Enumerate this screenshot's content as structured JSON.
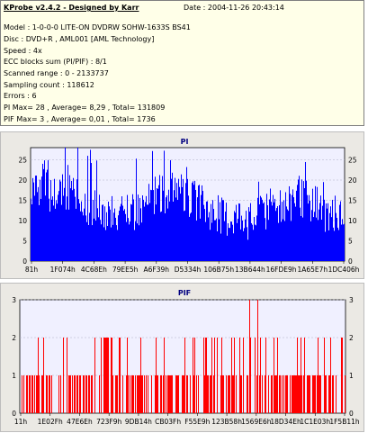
{
  "info": {
    "title": "KProbe v2.4.2 - Designed by Karr",
    "date": "Date : 2004-11-26 20:43:14",
    "lines": [
      "Model : 1-0-0-0 LITE-ON DVDRW SOHW-1633S BS41",
      "Disc : DVD+R , AML001 [AML Technology]",
      "Speed : 4x",
      "ECC blocks sum (PI/PIF) : 8/1",
      "Scanned range : 0 - 2133737",
      "Sampling count : 118612",
      "Errors : 6",
      "PI Max= 28 , Average= 8,29 , Total= 131809",
      "PIF Max= 3 , Average= 0,01 , Total= 1736"
    ]
  },
  "charts": {
    "pi": {
      "title": "PI",
      "color": "#0000ff",
      "yticks": [
        0,
        5,
        10,
        15,
        20,
        25
      ],
      "ymax": 28,
      "xticks": [
        "81h",
        "1F074h",
        "4C68Eh",
        "79EE5h",
        "A6F39h",
        "D5334h",
        "106B75h",
        "13B644h",
        "16FDE9h",
        "1A65E7h",
        "1DC406h"
      ]
    },
    "pif": {
      "title": "PIF",
      "color": "#ff0000",
      "yticks": [
        0,
        1,
        2,
        3
      ],
      "ymax": 3,
      "xticks": [
        "11h",
        "1E02Fh",
        "47E6Eh",
        "723F9h",
        "9DB14h",
        "CB03Fh",
        "F55E9h",
        "123B58h",
        "1569E6h",
        "18D34Eh",
        "1C1E03h",
        "1F5B11h"
      ]
    }
  },
  "chart_data": [
    {
      "type": "bar",
      "title": "PI",
      "ylim": [
        0,
        28
      ],
      "yticks": [
        0,
        5,
        10,
        15,
        20,
        25
      ],
      "categories": [
        "81h",
        "1F074h",
        "4C68Eh",
        "79EE5h",
        "A6F39h",
        "D5334h",
        "106B75h",
        "13B644h",
        "16FDE9h",
        "1A65E7h",
        "1DC406h"
      ],
      "summary": {
        "max": 28,
        "average": 8.29,
        "total": 131809
      },
      "typical_range": [
        10,
        22
      ]
    },
    {
      "type": "bar",
      "title": "PIF",
      "ylim": [
        0,
        3
      ],
      "yticks": [
        0,
        1,
        2,
        3
      ],
      "categories": [
        "11h",
        "1E02Fh",
        "47E6Eh",
        "723F9h",
        "9DB14h",
        "CB03Fh",
        "F55E9h",
        "123B58h",
        "1569E6h",
        "18D34Eh",
        "1C1E03h",
        "1F5B11h"
      ],
      "summary": {
        "max": 3,
        "average": 0.01,
        "total": 1736
      }
    }
  ]
}
